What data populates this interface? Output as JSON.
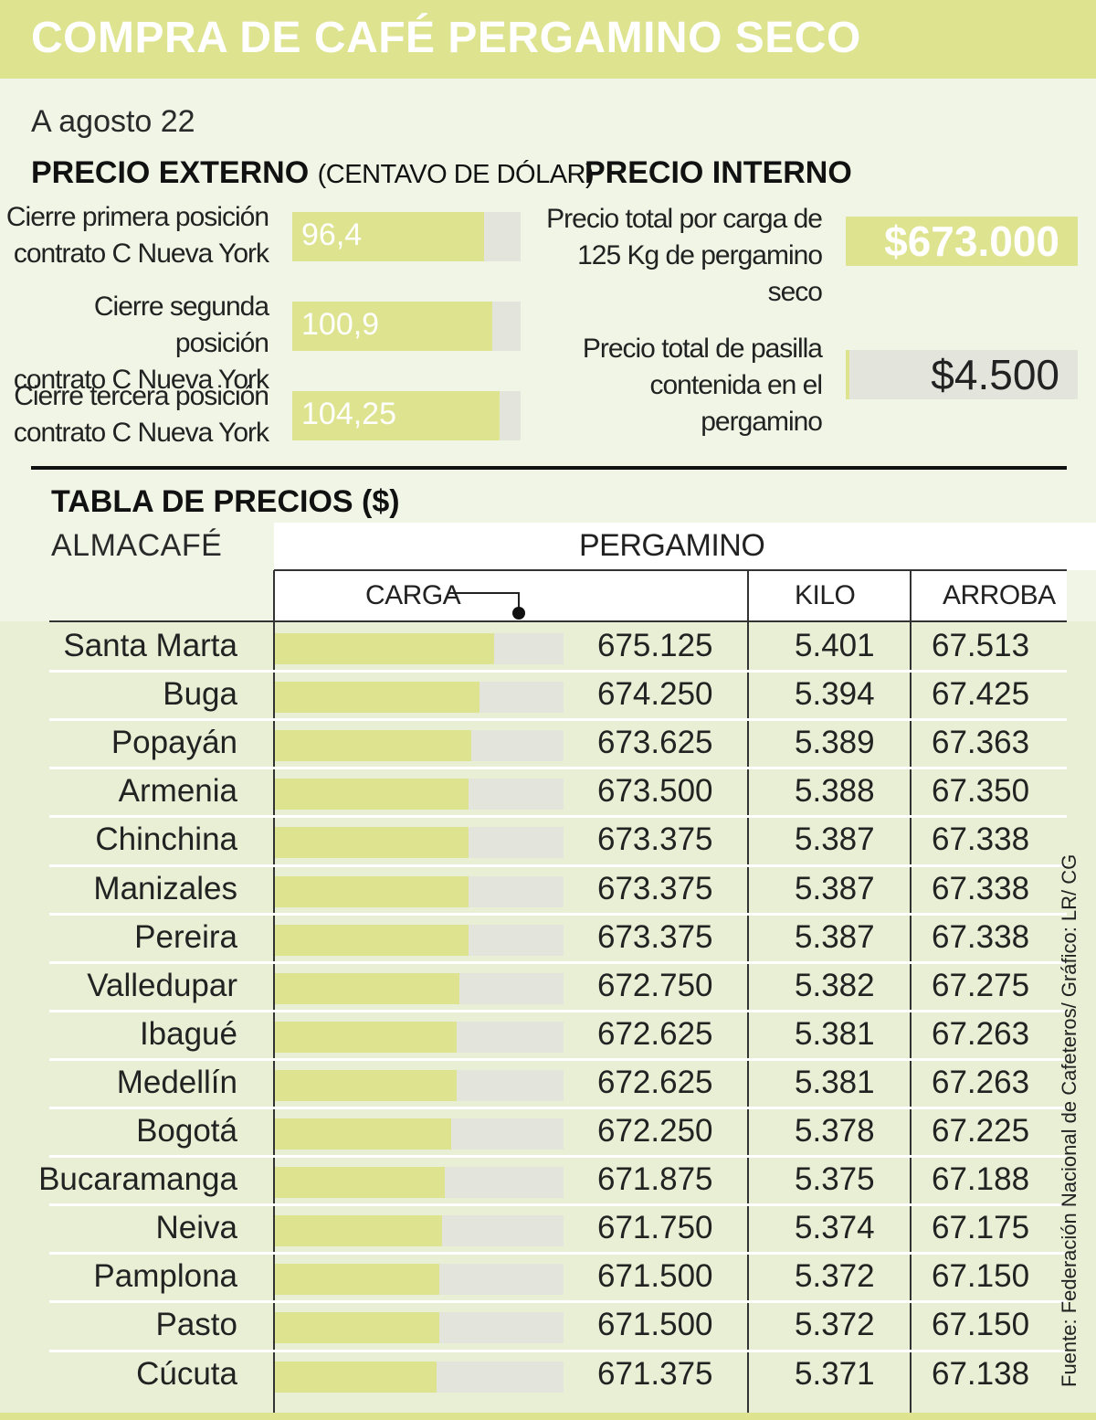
{
  "header": {
    "title": "COMPRA DE CAFÉ PERGAMINO SECO",
    "date": "A agosto 22"
  },
  "external": {
    "title": "PRECIO EXTERNO",
    "unit": "(CENTAVO DE DÓLAR)",
    "items": [
      {
        "label_line1": "Cierre primera posición",
        "label_line2": "contrato C Nueva York",
        "value": 96.4,
        "value_text": "96,4"
      },
      {
        "label_line1": "Cierre segunda posición",
        "label_line2": "contrato C Nueva York",
        "value": 100.9,
        "value_text": "100,9"
      },
      {
        "label_line1": "Cierre tercera posición",
        "label_line2": "contrato C Nueva York",
        "value": 104.25,
        "value_text": "104,25"
      }
    ]
  },
  "internal": {
    "title": "PRECIO INTERNO",
    "carga_label_1": "Precio total por carga de",
    "carga_label_2": "125 Kg de pergamino",
    "carga_label_3": "seco",
    "carga_value": "$673.000",
    "pasilla_label_1": "Precio total de pasilla",
    "pasilla_label_2": "contenida en el",
    "pasilla_label_3": "pergamino",
    "pasilla_value": "$4.500"
  },
  "table": {
    "title": "TABLA DE PRECIOS ($)",
    "row_header": "ALMACAFÉ",
    "group_header": "PERGAMINO",
    "col_carga": "CARGA",
    "col_kilo": "KILO",
    "col_arroba": "ARROBA"
  },
  "source": "Fuente: Federación Nacional de Cafeteros/ Gráfico: LR/ CG",
  "chart_data": {
    "type": "bar",
    "title": "TABLA DE PRECIOS ($)",
    "categories": [
      "Santa Marta",
      "Buga",
      "Popayán",
      "Armenia",
      "Chinchina",
      "Manizales",
      "Pereira",
      "Valledupar",
      "Ibagué",
      "Medellín",
      "Bogotá",
      "Bucaramanga",
      "Neiva",
      "Pamplona",
      "Pasto",
      "Cúcuta"
    ],
    "series": [
      {
        "name": "CARGA",
        "values": [
          675125,
          674250,
          673625,
          673500,
          673375,
          673375,
          673375,
          672750,
          672625,
          672625,
          672250,
          671875,
          671750,
          671500,
          671500,
          671375
        ]
      },
      {
        "name": "KILO",
        "values": [
          5401,
          5394,
          5389,
          5388,
          5387,
          5387,
          5387,
          5382,
          5381,
          5381,
          5378,
          5375,
          5374,
          5372,
          5372,
          5371
        ]
      },
      {
        "name": "ARROBA",
        "values": [
          67513,
          67425,
          67363,
          67350,
          67338,
          67338,
          67338,
          67275,
          67263,
          67263,
          67225,
          67188,
          67175,
          67150,
          67150,
          67138
        ]
      }
    ],
    "display": {
      "carga": [
        "675.125",
        "674.250",
        "673.625",
        "673.500",
        "673.375",
        "673.375",
        "673.375",
        "672.750",
        "672.625",
        "672.625",
        "672.250",
        "671.875",
        "671.750",
        "671.500",
        "671.500",
        "671.375"
      ],
      "kilo": [
        "5.401",
        "5.394",
        "5.389",
        "5.388",
        "5.387",
        "5.387",
        "5.387",
        "5.382",
        "5.381",
        "5.381",
        "5.378",
        "5.375",
        "5.374",
        "5.372",
        "5.372",
        "5.371"
      ],
      "arroba": [
        "67.513",
        "67.425",
        "67.363",
        "67.350",
        "67.338",
        "67.338",
        "67.338",
        "67.275",
        "67.263",
        "67.263",
        "67.225",
        "67.188",
        "67.175",
        "67.150",
        "67.150",
        "67.138"
      ]
    },
    "bar_fill_fraction": [
      0.76,
      0.71,
      0.68,
      0.67,
      0.67,
      0.67,
      0.67,
      0.64,
      0.63,
      0.63,
      0.61,
      0.59,
      0.58,
      0.57,
      0.57,
      0.56
    ],
    "colors": {
      "bar": "#dde38f",
      "track": "#e3e5dc"
    }
  },
  "colors": {
    "accent": "#dde38f",
    "background": "#f1f5e6",
    "track": "#e3e5dc"
  }
}
